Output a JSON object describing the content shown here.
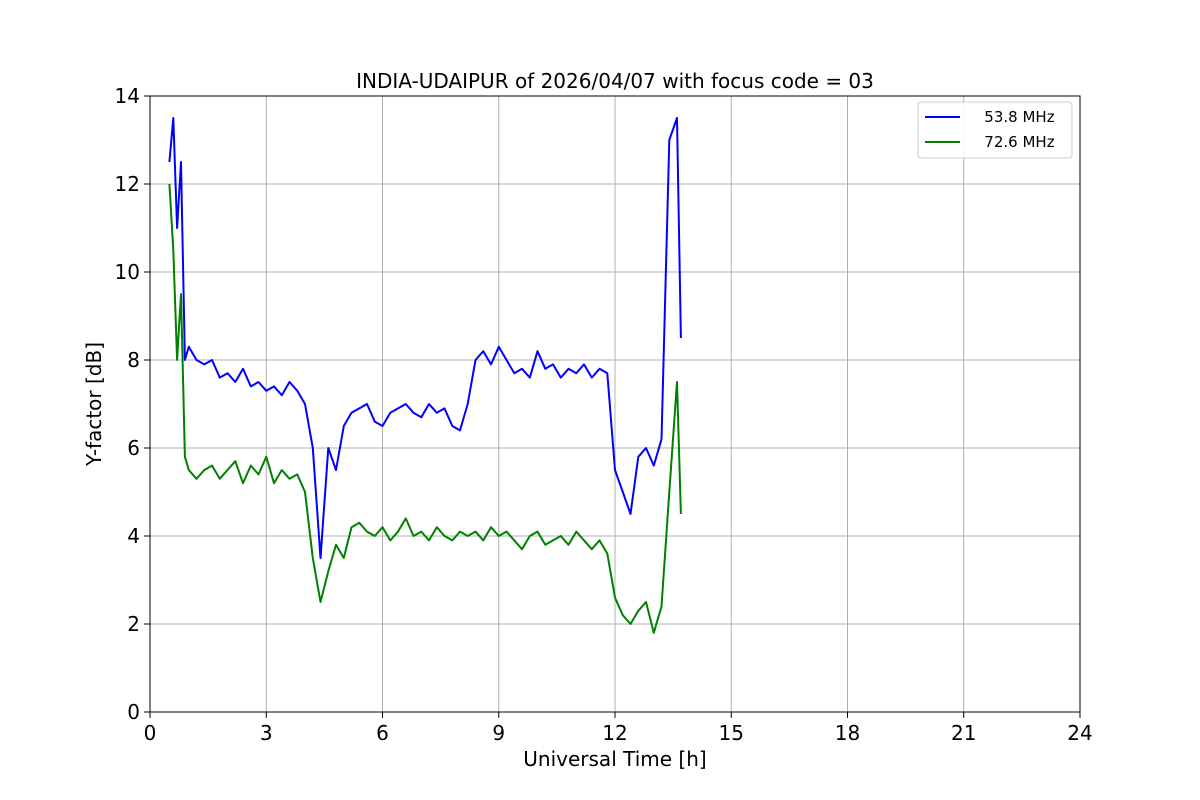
{
  "chart_data": {
    "type": "line",
    "title": "INDIA-UDAIPUR of 2026/04/07 with focus code = 03",
    "xlabel": "Universal Time [h]",
    "ylabel": "Y-factor [dB]",
    "xlim": [
      0,
      24
    ],
    "ylim": [
      0,
      14
    ],
    "xticks": [
      0,
      3,
      6,
      9,
      12,
      15,
      18,
      21,
      24
    ],
    "yticks": [
      0,
      2,
      4,
      6,
      8,
      10,
      12,
      14
    ],
    "grid": true,
    "legend_position": "top-right",
    "series": [
      {
        "name": "   53.8 MHz",
        "color": "#0000ff",
        "x": [
          0.5,
          0.6,
          0.7,
          0.8,
          0.9,
          1.0,
          1.2,
          1.4,
          1.6,
          1.8,
          2.0,
          2.2,
          2.4,
          2.6,
          2.8,
          3.0,
          3.2,
          3.4,
          3.6,
          3.8,
          4.0,
          4.2,
          4.4,
          4.6,
          4.8,
          5.0,
          5.2,
          5.4,
          5.6,
          5.8,
          6.0,
          6.2,
          6.4,
          6.6,
          6.8,
          7.0,
          7.2,
          7.4,
          7.6,
          7.8,
          8.0,
          8.2,
          8.4,
          8.6,
          8.8,
          9.0,
          9.2,
          9.4,
          9.6,
          9.8,
          10.0,
          10.2,
          10.4,
          10.6,
          10.8,
          11.0,
          11.2,
          11.4,
          11.6,
          11.8,
          12.0,
          12.2,
          12.4,
          12.6,
          12.8,
          13.0,
          13.2,
          13.4,
          13.6,
          13.7
        ],
        "values": [
          12.5,
          13.5,
          11.0,
          12.5,
          8.0,
          8.3,
          8.0,
          7.9,
          8.0,
          7.6,
          7.7,
          7.5,
          7.8,
          7.4,
          7.5,
          7.3,
          7.4,
          7.2,
          7.5,
          7.3,
          7.0,
          6.0,
          3.5,
          6.0,
          5.5,
          6.5,
          6.8,
          6.9,
          7.0,
          6.6,
          6.5,
          6.8,
          6.9,
          7.0,
          6.8,
          6.7,
          7.0,
          6.8,
          6.9,
          6.5,
          6.4,
          7.0,
          8.0,
          8.2,
          7.9,
          8.3,
          8.0,
          7.7,
          7.8,
          7.6,
          8.2,
          7.8,
          7.9,
          7.6,
          7.8,
          7.7,
          7.9,
          7.6,
          7.8,
          7.7,
          5.5,
          5.0,
          4.5,
          5.8,
          6.0,
          5.6,
          6.2,
          13.0,
          13.5,
          8.5
        ]
      },
      {
        "name": "   72.6 MHz",
        "color": "#008000",
        "x": [
          0.5,
          0.6,
          0.7,
          0.8,
          0.9,
          1.0,
          1.2,
          1.4,
          1.6,
          1.8,
          2.0,
          2.2,
          2.4,
          2.6,
          2.8,
          3.0,
          3.2,
          3.4,
          3.6,
          3.8,
          4.0,
          4.2,
          4.4,
          4.6,
          4.8,
          5.0,
          5.2,
          5.4,
          5.6,
          5.8,
          6.0,
          6.2,
          6.4,
          6.6,
          6.8,
          7.0,
          7.2,
          7.4,
          7.6,
          7.8,
          8.0,
          8.2,
          8.4,
          8.6,
          8.8,
          9.0,
          9.2,
          9.4,
          9.6,
          9.8,
          10.0,
          10.2,
          10.4,
          10.6,
          10.8,
          11.0,
          11.2,
          11.4,
          11.6,
          11.8,
          12.0,
          12.2,
          12.4,
          12.6,
          12.8,
          13.0,
          13.2,
          13.4,
          13.6,
          13.7
        ],
        "values": [
          12.0,
          10.5,
          8.0,
          9.5,
          5.8,
          5.5,
          5.3,
          5.5,
          5.6,
          5.3,
          5.5,
          5.7,
          5.2,
          5.6,
          5.4,
          5.8,
          5.2,
          5.5,
          5.3,
          5.4,
          5.0,
          3.5,
          2.5,
          3.2,
          3.8,
          3.5,
          4.2,
          4.3,
          4.1,
          4.0,
          4.2,
          3.9,
          4.1,
          4.4,
          4.0,
          4.1,
          3.9,
          4.2,
          4.0,
          3.9,
          4.1,
          4.0,
          4.1,
          3.9,
          4.2,
          4.0,
          4.1,
          3.9,
          3.7,
          4.0,
          4.1,
          3.8,
          3.9,
          4.0,
          3.8,
          4.1,
          3.9,
          3.7,
          3.9,
          3.6,
          2.6,
          2.2,
          2.0,
          2.3,
          2.5,
          1.8,
          2.4,
          5.0,
          7.5,
          4.5
        ]
      }
    ]
  }
}
